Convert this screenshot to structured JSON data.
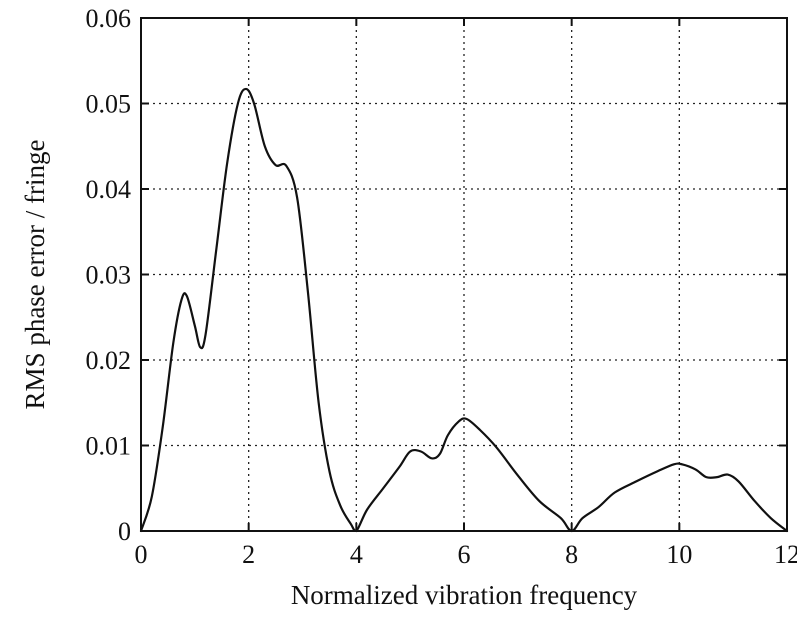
{
  "chart_data": {
    "type": "line",
    "title": "",
    "xlabel": "Normalized vibration frequency",
    "ylabel": "RMS phase error / fringe",
    "xlim": [
      0,
      12
    ],
    "ylim": [
      0,
      0.06
    ],
    "x_ticks": [
      0,
      2,
      4,
      6,
      8,
      10,
      12
    ],
    "x_tick_labels": [
      "0",
      "2",
      "4",
      "6",
      "8",
      "10",
      "12"
    ],
    "y_ticks": [
      0,
      0.01,
      0.02,
      0.03,
      0.04,
      0.05,
      0.06
    ],
    "y_tick_labels": [
      "0",
      "0.01",
      "0.02",
      "0.03",
      "0.04",
      "0.05",
      "0.06"
    ],
    "grid": true,
    "legend": false,
    "series": [
      {
        "x": [
          0,
          0.2,
          0.4,
          0.6,
          0.75,
          0.85,
          1.0,
          1.1,
          1.2,
          1.4,
          1.6,
          1.8,
          1.95,
          2.1,
          2.3,
          2.5,
          2.7,
          2.9,
          3.1,
          3.3,
          3.5,
          3.7,
          3.9,
          4.0,
          4.2,
          4.5,
          4.8,
          5.0,
          5.2,
          5.4,
          5.55,
          5.7,
          5.9,
          6.05,
          6.3,
          6.6,
          7.0,
          7.4,
          7.8,
          8.0,
          8.2,
          8.5,
          8.8,
          9.2,
          9.6,
          9.9,
          10.05,
          10.3,
          10.5,
          10.7,
          10.9,
          11.1,
          11.4,
          11.7,
          12.0
        ],
        "y": [
          0,
          0.004,
          0.012,
          0.022,
          0.027,
          0.0275,
          0.024,
          0.0215,
          0.023,
          0.033,
          0.043,
          0.05,
          0.0517,
          0.05,
          0.045,
          0.0428,
          0.0427,
          0.039,
          0.028,
          0.015,
          0.007,
          0.003,
          0.0008,
          0,
          0.0025,
          0.005,
          0.0075,
          0.0093,
          0.0093,
          0.0085,
          0.009,
          0.0112,
          0.0128,
          0.0131,
          0.0118,
          0.0098,
          0.0065,
          0.0035,
          0.0015,
          0,
          0.0015,
          0.0028,
          0.0045,
          0.0058,
          0.007,
          0.0078,
          0.0078,
          0.0072,
          0.0063,
          0.0063,
          0.0066,
          0.0058,
          0.0035,
          0.0015,
          0
        ]
      }
    ]
  }
}
